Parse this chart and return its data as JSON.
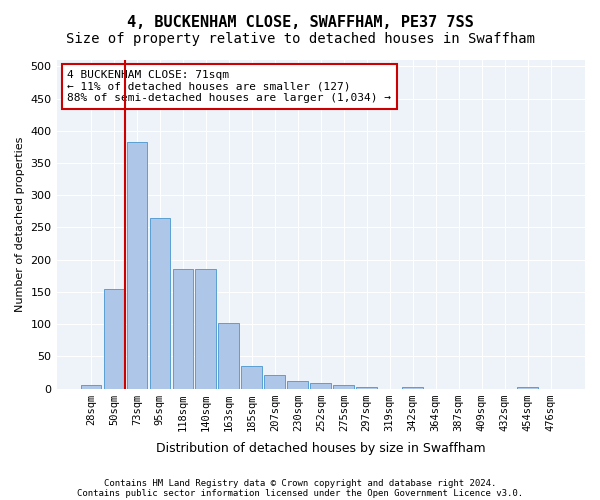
{
  "title1": "4, BUCKENHAM CLOSE, SWAFFHAM, PE37 7SS",
  "title2": "Size of property relative to detached houses in Swaffham",
  "xlabel": "Distribution of detached houses by size in Swaffham",
  "ylabel": "Number of detached properties",
  "bins": [
    "28sqm",
    "50sqm",
    "73sqm",
    "95sqm",
    "118sqm",
    "140sqm",
    "163sqm",
    "185sqm",
    "207sqm",
    "230sqm",
    "252sqm",
    "275sqm",
    "297sqm",
    "319sqm",
    "342sqm",
    "364sqm",
    "387sqm",
    "409sqm",
    "432sqm",
    "454sqm",
    "476sqm"
  ],
  "values": [
    5,
    155,
    383,
    265,
    185,
    185,
    101,
    35,
    21,
    12,
    8,
    5,
    2,
    0,
    3,
    0,
    0,
    0,
    0,
    3,
    0
  ],
  "bar_color": "#aec6e8",
  "bar_edge_color": "#5a9fd4",
  "marker_color": "#cc0000",
  "annotation_text": "4 BUCKENHAM CLOSE: 71sqm\n← 11% of detached houses are smaller (127)\n88% of semi-detached houses are larger (1,034) →",
  "annotation_box_color": "#ffffff",
  "annotation_box_edge_color": "#cc0000",
  "ylim": [
    0,
    510
  ],
  "yticks": [
    0,
    50,
    100,
    150,
    200,
    250,
    300,
    350,
    400,
    450,
    500
  ],
  "footer1": "Contains HM Land Registry data © Crown copyright and database right 2024.",
  "footer2": "Contains public sector information licensed under the Open Government Licence v3.0.",
  "bg_color": "#eef2f9",
  "grid_color": "#ffffff",
  "title1_fontsize": 11,
  "title2_fontsize": 10
}
